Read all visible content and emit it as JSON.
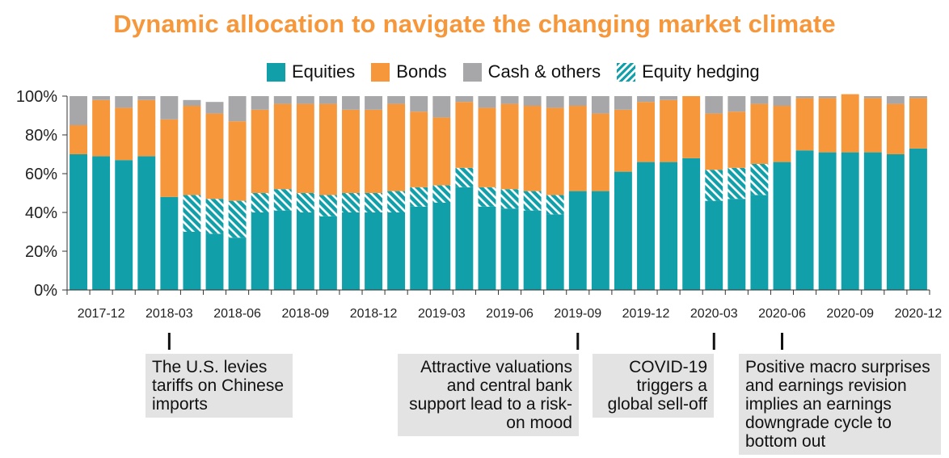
{
  "chart_data": {
    "type": "bar",
    "stacked": true,
    "title": "Dynamic allocation to navigate the changing market climate",
    "xlabel": "",
    "ylabel": "",
    "ylim": [
      0,
      100
    ],
    "yticks": [
      "0%",
      "20%",
      "40%",
      "60%",
      "80%",
      "100%"
    ],
    "categories": [
      "2017-11",
      "2017-12",
      "2018-01",
      "2018-02",
      "2018-03",
      "2018-04",
      "2018-05",
      "2018-06",
      "2018-07",
      "2018-08",
      "2018-09",
      "2018-10",
      "2018-11",
      "2018-12",
      "2019-01",
      "2019-02",
      "2019-03",
      "2019-04",
      "2019-05",
      "2019-06",
      "2019-07",
      "2019-08",
      "2019-09",
      "2019-10",
      "2019-11",
      "2019-12",
      "2020-01",
      "2020-02",
      "2020-03",
      "2020-04",
      "2020-05",
      "2020-06",
      "2020-07",
      "2020-08",
      "2020-09",
      "2020-10",
      "2020-11",
      "2020-12"
    ],
    "xtick_labels": [
      "2017-12",
      "2018-03",
      "2018-06",
      "2018-09",
      "2018-12",
      "2019-03",
      "2019-06",
      "2019-09",
      "2019-12",
      "2020-03",
      "2020-06",
      "2020-09",
      "2020-12"
    ],
    "series": [
      {
        "name": "Equities",
        "values": [
          70,
          69,
          67,
          69,
          48,
          30,
          29,
          27,
          40,
          41,
          40,
          38,
          40,
          40,
          40,
          43,
          45,
          53,
          43,
          42,
          41,
          39,
          51,
          51,
          61,
          66,
          66,
          68,
          46,
          47,
          49,
          66,
          72,
          71,
          71,
          71,
          70,
          73
        ]
      },
      {
        "name": "Equity hedging",
        "values": [
          0,
          0,
          0,
          0,
          0,
          19,
          18,
          19,
          10,
          11,
          10,
          11,
          10,
          10,
          11,
          10,
          9,
          10,
          10,
          10,
          10,
          10,
          0,
          0,
          0,
          0,
          0,
          0,
          16,
          16,
          16,
          0,
          0,
          0,
          0,
          0,
          0,
          0
        ]
      },
      {
        "name": "Bonds",
        "values": [
          15,
          29,
          27,
          29,
          40,
          46,
          44,
          41,
          43,
          44,
          46,
          47,
          43,
          43,
          45,
          39,
          35,
          34,
          41,
          44,
          44,
          45,
          44,
          40,
          32,
          31,
          32,
          32,
          29,
          29,
          31,
          29,
          27,
          28,
          30,
          28,
          26,
          26
        ]
      },
      {
        "name": "Cash & others",
        "values": [
          15,
          2,
          6,
          2,
          12,
          3,
          6,
          13,
          7,
          4,
          4,
          4,
          7,
          7,
          4,
          8,
          11,
          3,
          6,
          4,
          5,
          6,
          5,
          9,
          7,
          3,
          2,
          0,
          9,
          8,
          4,
          5,
          1,
          1,
          0,
          1,
          4,
          1
        ]
      }
    ],
    "colors": {
      "Equities": "#11a0aa",
      "Bonds": "#f5973a",
      "Cash & others": "#a7a7aa",
      "Equity hedging": "#11a0aa"
    },
    "legend": [
      "Equities",
      "Bonds",
      "Cash & others",
      "Equity hedging"
    ],
    "legend_position": "top",
    "annotations": [
      {
        "text": "The U.S. levies tariffs on Chinese imports",
        "category": "2018-03"
      },
      {
        "text": "Attractive valuations and central bank support lead to a risk-on mood",
        "category": "2019-09"
      },
      {
        "text": "COVID-19 triggers a global sell-off",
        "category": "2020-03"
      },
      {
        "text": "Positive macro surprises and earnings revision implies an earnings downgrade cycle to bottom out",
        "category": "2020-06"
      }
    ],
    "grid": false
  },
  "colors": {
    "title": "#f5973a",
    "axis": "#333333"
  }
}
